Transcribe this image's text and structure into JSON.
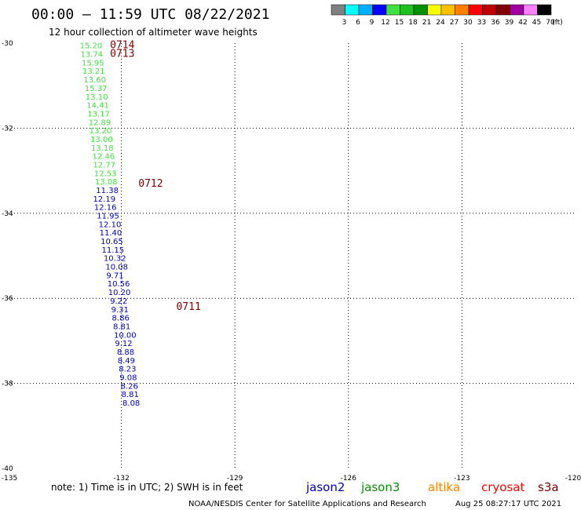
{
  "header": {
    "title": "00:00 – 11:59 UTC 08/22/2021",
    "subtitle": "12 hour collection of altimeter wave heights"
  },
  "color_scale": {
    "colors": [
      "#808080",
      "#00ffff",
      "#00b0ff",
      "#0000ff",
      "#40e040",
      "#20c020",
      "#009000",
      "#ffff00",
      "#ffc000",
      "#ff8000",
      "#ff0000",
      "#c00000",
      "#800000",
      "#a000a0",
      "#ff80ff",
      "#000000"
    ],
    "labels": [
      "3",
      "6",
      "9",
      "12",
      "15",
      "18",
      "21",
      "24",
      "27",
      "30",
      "33",
      "36",
      "39",
      "42",
      "45",
      "70",
      "(ft)"
    ]
  },
  "chart_data": {
    "type": "scatter",
    "title": "12 hour collection of altimeter wave heights",
    "xlim": [
      -135,
      -120
    ],
    "ylim": [
      -40,
      -30
    ],
    "x_ticks": [
      "-135",
      "-132",
      "-129",
      "-126",
      "-123",
      "-120"
    ],
    "y_ticks": [
      "-30",
      "-32",
      "-34",
      "-36",
      "-38",
      "-40"
    ],
    "grid": true,
    "series": [
      {
        "name": "jason3",
        "color": "#40e040",
        "points": [
          {
            "lon": -133.1,
            "lat": -30.05,
            "swh": "15.20"
          },
          {
            "lon": -133.08,
            "lat": -30.25,
            "swh": "13.74"
          },
          {
            "lon": -133.05,
            "lat": -30.45,
            "swh": "15.95"
          },
          {
            "lon": -133.03,
            "lat": -30.65,
            "swh": "13.21"
          },
          {
            "lon": -133.0,
            "lat": -30.85,
            "swh": "13.60"
          },
          {
            "lon": -132.97,
            "lat": -31.05,
            "swh": "15.37"
          },
          {
            "lon": -132.95,
            "lat": -31.25,
            "swh": "13.10"
          },
          {
            "lon": -132.92,
            "lat": -31.45,
            "swh": "14.41"
          },
          {
            "lon": -132.9,
            "lat": -31.65,
            "swh": "13.17"
          },
          {
            "lon": -132.87,
            "lat": -31.85,
            "swh": "12.89"
          },
          {
            "lon": -132.85,
            "lat": -32.05,
            "swh": "13.20"
          },
          {
            "lon": -132.82,
            "lat": -32.25,
            "swh": "13.00"
          },
          {
            "lon": -132.8,
            "lat": -32.45,
            "swh": "13.18"
          },
          {
            "lon": -132.77,
            "lat": -32.65,
            "swh": "12.46"
          },
          {
            "lon": -132.75,
            "lat": -32.85,
            "swh": "12.77"
          },
          {
            "lon": -132.72,
            "lat": -33.05,
            "swh": "12.53"
          },
          {
            "lon": -132.7,
            "lat": -33.25,
            "swh": "13.08"
          }
        ]
      },
      {
        "name": "jason2",
        "color": "#0000c0",
        "points": [
          {
            "lon": -132.67,
            "lat": -33.45,
            "swh": "11.38"
          },
          {
            "lon": -132.75,
            "lat": -33.65,
            "swh": "12.19"
          },
          {
            "lon": -132.72,
            "lat": -33.85,
            "swh": "12.16"
          },
          {
            "lon": -132.65,
            "lat": -34.05,
            "swh": "11.95"
          },
          {
            "lon": -132.6,
            "lat": -34.25,
            "swh": "12.10"
          },
          {
            "lon": -132.58,
            "lat": -34.45,
            "swh": "11.40"
          },
          {
            "lon": -132.55,
            "lat": -34.65,
            "swh": "10.65"
          },
          {
            "lon": -132.52,
            "lat": -34.85,
            "swh": "11.15"
          },
          {
            "lon": -132.47,
            "lat": -35.05,
            "swh": "10.32"
          },
          {
            "lon": -132.42,
            "lat": -35.25,
            "swh": "10.08"
          },
          {
            "lon": -132.4,
            "lat": -35.45,
            "swh": "9.71"
          },
          {
            "lon": -132.37,
            "lat": -35.65,
            "swh": "10.56"
          },
          {
            "lon": -132.35,
            "lat": -35.85,
            "swh": "10.20"
          },
          {
            "lon": -132.3,
            "lat": -36.05,
            "swh": "9.22"
          },
          {
            "lon": -132.27,
            "lat": -36.25,
            "swh": "9.31"
          },
          {
            "lon": -132.25,
            "lat": -36.45,
            "swh": "8.86"
          },
          {
            "lon": -132.22,
            "lat": -36.65,
            "swh": "8.81"
          },
          {
            "lon": -132.2,
            "lat": -36.85,
            "swh": "10.00"
          },
          {
            "lon": -132.17,
            "lat": -37.05,
            "swh": "9.12"
          },
          {
            "lon": -132.12,
            "lat": -37.25,
            "swh": "8.88"
          },
          {
            "lon": -132.1,
            "lat": -37.45,
            "swh": "8.49"
          },
          {
            "lon": -132.07,
            "lat": -37.65,
            "swh": "8.23"
          },
          {
            "lon": -132.05,
            "lat": -37.85,
            "swh": "9.08"
          },
          {
            "lon": -132.02,
            "lat": -38.05,
            "swh": "8.26"
          },
          {
            "lon": -132.0,
            "lat": -38.25,
            "swh": "8.81"
          },
          {
            "lon": -131.97,
            "lat": -38.45,
            "swh": "8.08"
          }
        ]
      }
    ],
    "annotations": [
      {
        "text": "0714",
        "lon": -132.3,
        "lat": -30.05
      },
      {
        "text": "0713",
        "lon": -132.3,
        "lat": -30.25
      },
      {
        "text": "0712",
        "lon": -131.55,
        "lat": -33.3
      },
      {
        "text": "0711",
        "lon": -130.55,
        "lat": -36.2
      }
    ]
  },
  "note": "note: 1) Time is in UTC; 2) SWH is in feet",
  "legend": [
    {
      "label": "jason2",
      "color": "#0000c0"
    },
    {
      "label": "jason3",
      "color": "#009000"
    },
    {
      "label": "altika",
      "color": "#ff8000"
    },
    {
      "label": "cryosat",
      "color": "#ff0000"
    },
    {
      "label": "s3a",
      "color": "#800000"
    }
  ],
  "footer": {
    "source": "NOAA/NESDIS Center for Satellite Applications and Research",
    "timestamp": "Aug 25 08:27:17 UTC 2021"
  }
}
